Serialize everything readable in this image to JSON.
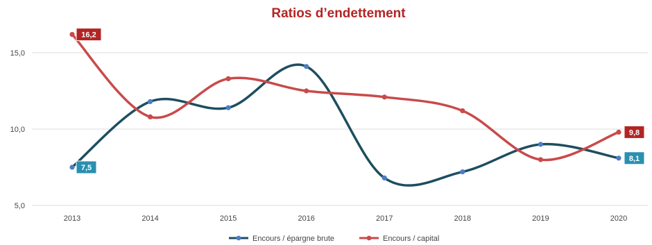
{
  "chart_data": {
    "type": "line",
    "title": "Ratios d’endettement",
    "categories": [
      "2013",
      "2014",
      "2015",
      "2016",
      "2017",
      "2018",
      "2019",
      "2020"
    ],
    "ylim": [
      5.0,
      15.0
    ],
    "yticks": [
      "5,0",
      "10,0",
      "15,0"
    ],
    "grid": true,
    "legend_position": "bottom",
    "series": [
      {
        "name": "Encours / épargne brute",
        "color": "#1d4e5f",
        "marker_color": "#4a7ec8",
        "values": [
          7.5,
          11.8,
          11.4,
          14.1,
          6.8,
          7.2,
          9.0,
          8.1
        ],
        "labels": [
          {
            "index": 0,
            "text": "7,5"
          },
          {
            "index": 7,
            "text": "8,1"
          }
        ],
        "label_color": "#2a8fb0"
      },
      {
        "name": "Encours / capital",
        "color": "#c94a4a",
        "marker_color": "#c94a4a",
        "values": [
          16.2,
          10.8,
          13.3,
          12.5,
          12.1,
          11.2,
          8.0,
          9.8
        ],
        "labels": [
          {
            "index": 0,
            "text": "16,2"
          },
          {
            "index": 7,
            "text": "9,8"
          }
        ],
        "label_color": "#b32424"
      }
    ],
    "title_color": "#b32424"
  }
}
